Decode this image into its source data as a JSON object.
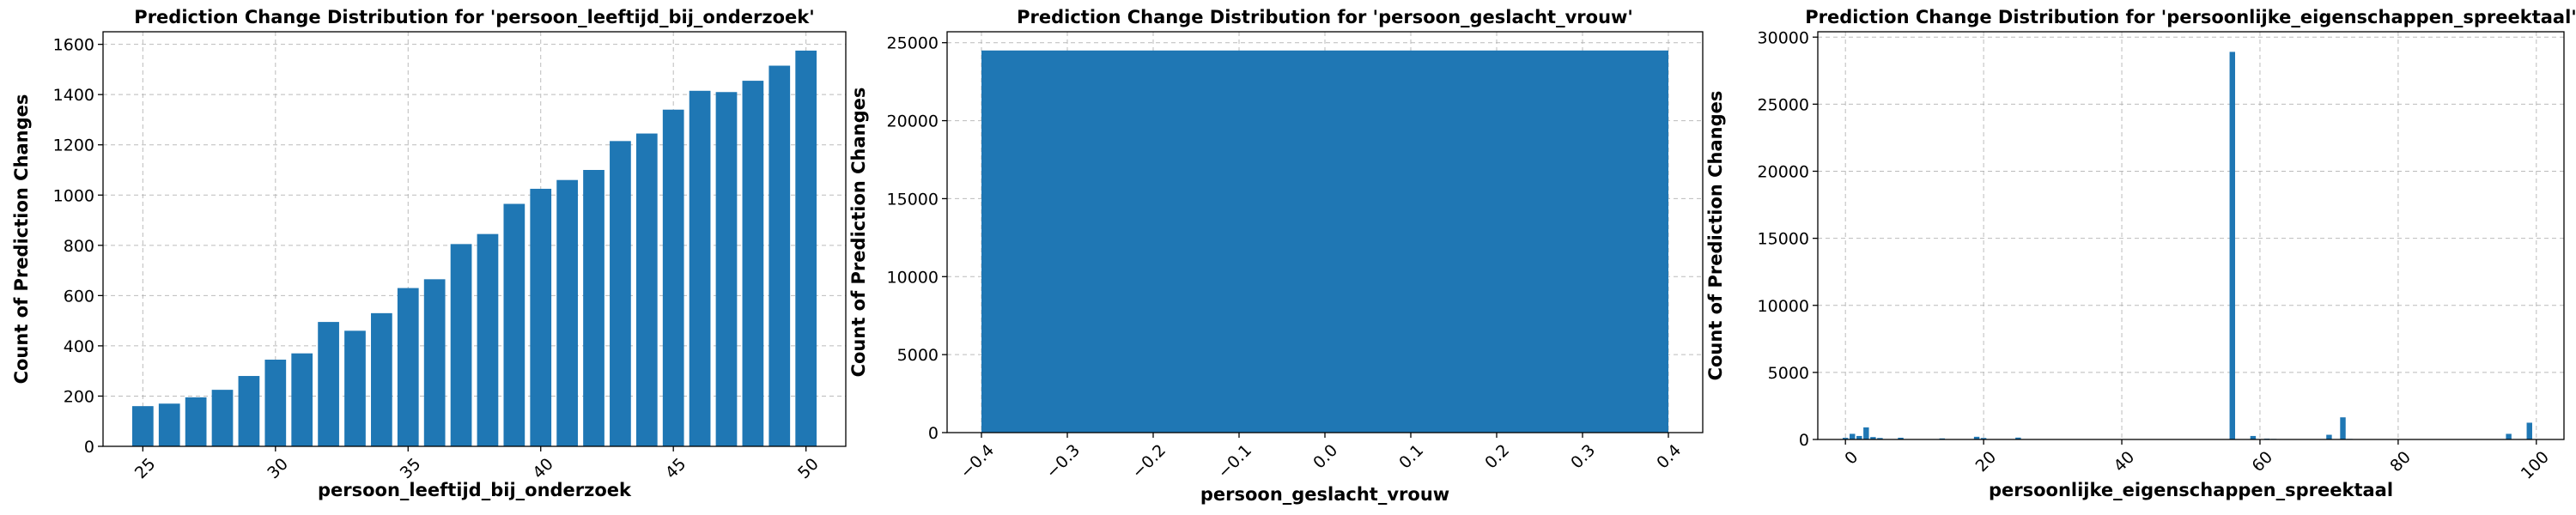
{
  "chart_data": [
    {
      "type": "bar",
      "title": "Prediction Change Distribution for 'persoon_leeftijd_bij_onderzoek'",
      "xlabel": "persoon_leeftijd_bij_onderzoek",
      "ylabel": "Count of Prediction Changes",
      "xlim": [
        23.5,
        51.5
      ],
      "ylim": [
        0,
        1650
      ],
      "xticks": [
        25,
        30,
        35,
        40,
        45,
        50
      ],
      "xtick_rotation": 45,
      "yticks": [
        0,
        200,
        400,
        600,
        800,
        1000,
        1200,
        1400,
        1600
      ],
      "bar_width": 0.8,
      "grid": true,
      "color": "#1f77b4",
      "x": [
        25,
        26,
        27,
        28,
        29,
        30,
        31,
        32,
        33,
        34,
        35,
        36,
        37,
        38,
        39,
        40,
        41,
        42,
        43,
        44,
        45,
        46,
        47,
        48,
        49,
        50
      ],
      "values": [
        160,
        170,
        195,
        225,
        280,
        345,
        370,
        495,
        460,
        530,
        630,
        665,
        805,
        845,
        965,
        1025,
        1060,
        1100,
        1215,
        1245,
        1340,
        1415,
        1410,
        1455,
        1515,
        1575
      ]
    },
    {
      "type": "bar",
      "title": "Prediction Change Distribution for 'persoon_geslacht_vrouw'",
      "xlabel": "persoon_geslacht_vrouw",
      "ylabel": "Count of Prediction Changes",
      "xlim": [
        -0.44,
        0.44
      ],
      "ylim": [
        0,
        25700
      ],
      "xticks": [
        -0.4,
        -0.3,
        -0.2,
        -0.1,
        0.0,
        0.1,
        0.2,
        0.3,
        0.4
      ],
      "xtick_labels": [
        "−0.4",
        "−0.3",
        "−0.2",
        "−0.1",
        "0.0",
        "0.1",
        "0.2",
        "0.3",
        "0.4"
      ],
      "xtick_rotation": 45,
      "yticks": [
        0,
        5000,
        10000,
        15000,
        20000,
        25000
      ],
      "bar_width": 0.8,
      "grid": true,
      "color": "#1f77b4",
      "x": [
        0
      ],
      "values": [
        24500
      ]
    },
    {
      "type": "bar",
      "title": "Prediction Change Distribution for 'persoonlijke_eigenschappen_spreektaal'",
      "xlabel": "persoonlijke_eigenschappen_spreektaal",
      "ylabel": "Count of Prediction Changes",
      "xlim": [
        -4,
        104
      ],
      "ylim": [
        0,
        30400
      ],
      "xticks": [
        0,
        20,
        40,
        60,
        80,
        100
      ],
      "xtick_rotation": 45,
      "yticks": [
        0,
        5000,
        10000,
        15000,
        20000,
        25000,
        30000
      ],
      "bar_width": 0.8,
      "grid": true,
      "color": "#1f77b4",
      "x": [
        0,
        1,
        2,
        3,
        4,
        5,
        8,
        14,
        19,
        20,
        25,
        56,
        59,
        61,
        62,
        64,
        70,
        72,
        73,
        96,
        99
      ],
      "values": [
        120,
        420,
        260,
        900,
        180,
        110,
        130,
        80,
        200,
        110,
        140,
        28900,
        260,
        60,
        40,
        30,
        350,
        1650,
        40,
        420,
        1250
      ]
    }
  ]
}
